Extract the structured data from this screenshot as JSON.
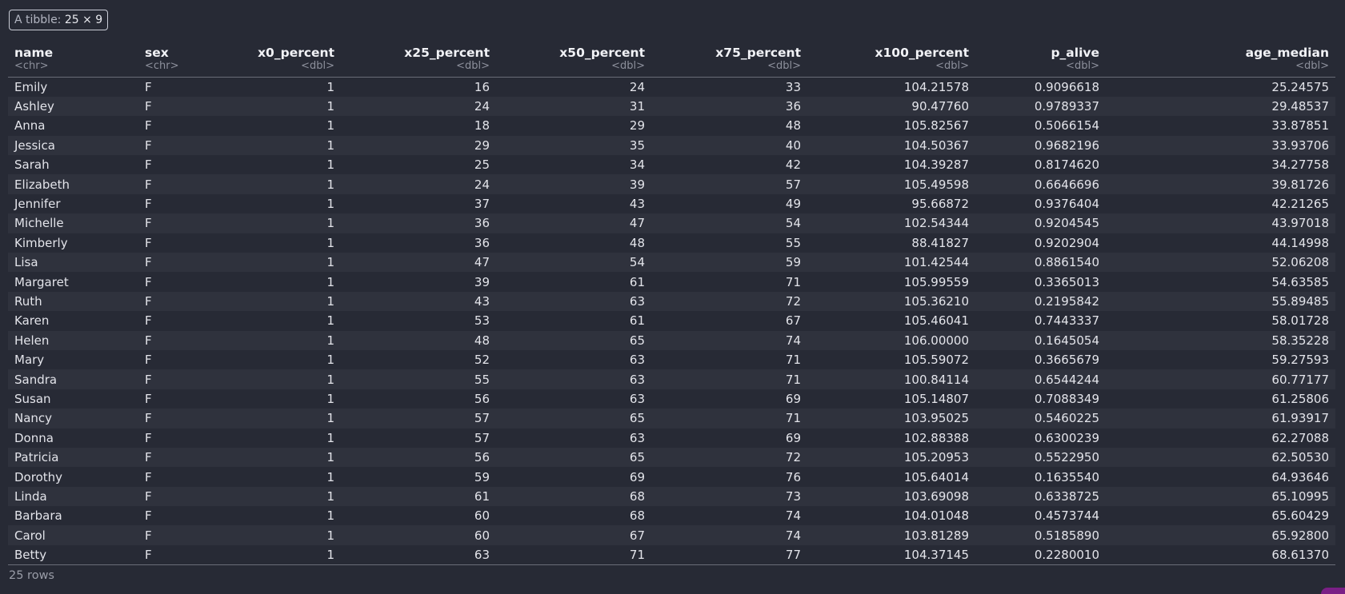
{
  "badge": {
    "prefix": "A tibble:",
    "dims": "25 × 9"
  },
  "columns": [
    {
      "name": "name",
      "type": "<chr>"
    },
    {
      "name": "sex",
      "type": "<chr>"
    },
    {
      "name": "x0_percent",
      "type": "<dbl>"
    },
    {
      "name": "x25_percent",
      "type": "<dbl>"
    },
    {
      "name": "x50_percent",
      "type": "<dbl>"
    },
    {
      "name": "x75_percent",
      "type": "<dbl>"
    },
    {
      "name": "x100_percent",
      "type": "<dbl>"
    },
    {
      "name": "p_alive",
      "type": "<dbl>"
    },
    {
      "name": "age_median",
      "type": "<dbl>"
    }
  ],
  "rows": [
    [
      "Emily",
      "F",
      "1",
      "16",
      "24",
      "33",
      "104.21578",
      "0.9096618",
      "25.24575"
    ],
    [
      "Ashley",
      "F",
      "1",
      "24",
      "31",
      "36",
      "90.47760",
      "0.9789337",
      "29.48537"
    ],
    [
      "Anna",
      "F",
      "1",
      "18",
      "29",
      "48",
      "105.82567",
      "0.5066154",
      "33.87851"
    ],
    [
      "Jessica",
      "F",
      "1",
      "29",
      "35",
      "40",
      "104.50367",
      "0.9682196",
      "33.93706"
    ],
    [
      "Sarah",
      "F",
      "1",
      "25",
      "34",
      "42",
      "104.39287",
      "0.8174620",
      "34.27758"
    ],
    [
      "Elizabeth",
      "F",
      "1",
      "24",
      "39",
      "57",
      "105.49598",
      "0.6646696",
      "39.81726"
    ],
    [
      "Jennifer",
      "F",
      "1",
      "37",
      "43",
      "49",
      "95.66872",
      "0.9376404",
      "42.21265"
    ],
    [
      "Michelle",
      "F",
      "1",
      "36",
      "47",
      "54",
      "102.54344",
      "0.9204545",
      "43.97018"
    ],
    [
      "Kimberly",
      "F",
      "1",
      "36",
      "48",
      "55",
      "88.41827",
      "0.9202904",
      "44.14998"
    ],
    [
      "Lisa",
      "F",
      "1",
      "47",
      "54",
      "59",
      "101.42544",
      "0.8861540",
      "52.06208"
    ],
    [
      "Margaret",
      "F",
      "1",
      "39",
      "61",
      "71",
      "105.99559",
      "0.3365013",
      "54.63585"
    ],
    [
      "Ruth",
      "F",
      "1",
      "43",
      "63",
      "72",
      "105.36210",
      "0.2195842",
      "55.89485"
    ],
    [
      "Karen",
      "F",
      "1",
      "53",
      "61",
      "67",
      "105.46041",
      "0.7443337",
      "58.01728"
    ],
    [
      "Helen",
      "F",
      "1",
      "48",
      "65",
      "74",
      "106.00000",
      "0.1645054",
      "58.35228"
    ],
    [
      "Mary",
      "F",
      "1",
      "52",
      "63",
      "71",
      "105.59072",
      "0.3665679",
      "59.27593"
    ],
    [
      "Sandra",
      "F",
      "1",
      "55",
      "63",
      "71",
      "100.84114",
      "0.6544244",
      "60.77177"
    ],
    [
      "Susan",
      "F",
      "1",
      "56",
      "63",
      "69",
      "105.14807",
      "0.7088349",
      "61.25806"
    ],
    [
      "Nancy",
      "F",
      "1",
      "57",
      "65",
      "71",
      "103.95025",
      "0.5460225",
      "61.93917"
    ],
    [
      "Donna",
      "F",
      "1",
      "57",
      "63",
      "69",
      "102.88388",
      "0.6300239",
      "62.27088"
    ],
    [
      "Patricia",
      "F",
      "1",
      "56",
      "65",
      "72",
      "105.20953",
      "0.5522950",
      "62.50530"
    ],
    [
      "Dorothy",
      "F",
      "1",
      "59",
      "69",
      "76",
      "105.64014",
      "0.1635540",
      "64.93646"
    ],
    [
      "Linda",
      "F",
      "1",
      "61",
      "68",
      "73",
      "103.69098",
      "0.6338725",
      "65.10995"
    ],
    [
      "Barbara",
      "F",
      "1",
      "60",
      "68",
      "74",
      "104.01048",
      "0.4573744",
      "65.60429"
    ],
    [
      "Carol",
      "F",
      "1",
      "60",
      "67",
      "74",
      "103.81289",
      "0.5185890",
      "65.92800"
    ],
    [
      "Betty",
      "F",
      "1",
      "63",
      "71",
      "77",
      "104.37145",
      "0.2280010",
      "68.61370"
    ]
  ],
  "footer": {
    "row_count": "25 rows"
  },
  "colors": {
    "background": "#272a35",
    "row_alt": "#2f323d",
    "accent": "#7a1f86"
  }
}
